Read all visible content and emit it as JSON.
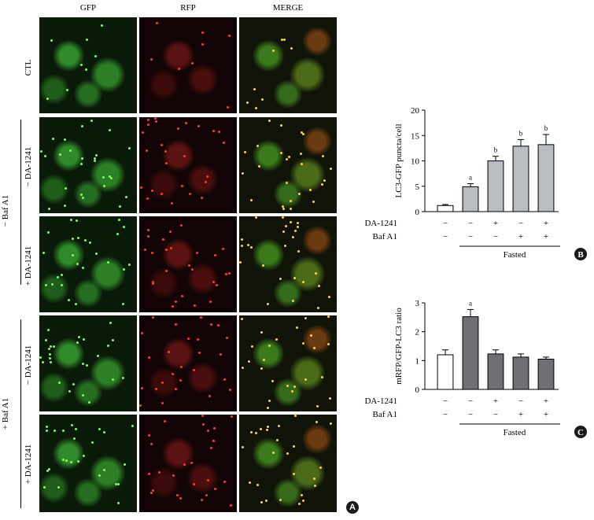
{
  "micrographs": {
    "columns": [
      "GFP",
      "RFP",
      "MERGE"
    ],
    "rows": [
      "CTL",
      "− DA-1241",
      "+ DA-1241",
      "− DA-1241",
      "+ DA-1241"
    ],
    "groups": [
      "− Baf A1",
      "+ Baf A1"
    ],
    "badge": "A"
  },
  "chart_data": [
    {
      "type": "bar",
      "panel": "B",
      "ylabel": "LC3-GFP puncta/cell",
      "ylim": [
        0,
        20
      ],
      "yticks": [
        0,
        5,
        10,
        15,
        20
      ],
      "categories": [
        "1",
        "2",
        "3",
        "4",
        "5"
      ],
      "values": [
        1.2,
        4.9,
        10.0,
        12.9,
        13.2
      ],
      "errors": [
        0.2,
        0.6,
        0.9,
        1.3,
        2.0
      ],
      "sig": [
        "",
        "a",
        "b",
        "b",
        "b"
      ],
      "colors": [
        "#ffffff",
        "#b9bcc0",
        "#b9bcc0",
        "#b9bcc0",
        "#b9bcc0"
      ],
      "conditions": [
        {
          "label": "DA-1241",
          "marks": [
            "−",
            "−",
            "+",
            "−",
            "+"
          ]
        },
        {
          "label": "Baf A1",
          "marks": [
            "−",
            "−",
            "−",
            "+",
            "+"
          ]
        }
      ],
      "group_label": "Fasted"
    },
    {
      "type": "bar",
      "panel": "C",
      "ylabel": "mRFP/GFP-LC3 ratio",
      "ylim": [
        0,
        3
      ],
      "yticks": [
        0,
        1,
        2,
        3
      ],
      "categories": [
        "1",
        "2",
        "3",
        "4",
        "5"
      ],
      "values": [
        1.2,
        2.52,
        1.23,
        1.12,
        1.05
      ],
      "errors": [
        0.17,
        0.25,
        0.14,
        0.11,
        0.07
      ],
      "sig": [
        "",
        "a",
        "",
        "",
        ""
      ],
      "colors": [
        "#ffffff",
        "#6e7074",
        "#6e7074",
        "#6e7074",
        "#6e7074"
      ],
      "conditions": [
        {
          "label": "DA-1241",
          "marks": [
            "−",
            "−",
            "+",
            "−",
            "+"
          ]
        },
        {
          "label": "Baf A1",
          "marks": [
            "−",
            "−",
            "−",
            "+",
            "+"
          ]
        }
      ],
      "group_label": "Fasted"
    }
  ]
}
